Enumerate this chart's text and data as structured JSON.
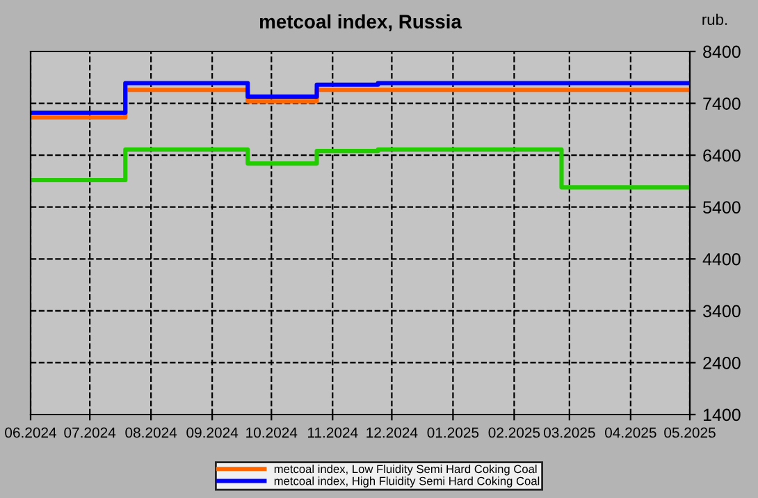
{
  "chart_data": {
    "type": "step",
    "title": "metcoal index, Russia",
    "ylabel": "rub.",
    "x": [
      "2024-06-01",
      "2024-07-19",
      "2024-09-19",
      "2024-10-24",
      "2024-11-24",
      "2025-02-25",
      "2025-05-01"
    ],
    "series": [
      {
        "name": "metcoal index, Low Fluidity Semi Hard Coking Coal",
        "color": "#ff6600",
        "values": [
          7130,
          7660,
          7440,
          7660,
          7660,
          7660,
          7660
        ]
      },
      {
        "name": "metcoal index, High Fluidity Semi Hard Coking Coal",
        "color": "#0000ff",
        "values": [
          7220,
          7790,
          7530,
          7760,
          7790,
          7790,
          7790
        ]
      },
      {
        "color": "#22cc00",
        "values": [
          5920,
          6510,
          6240,
          6480,
          6510,
          5780,
          5780
        ]
      }
    ],
    "xlim": [
      "2024-06-01",
      "2025-05-01"
    ],
    "xticks": [
      {
        "value": "2024-06-01",
        "label": "06.2024"
      },
      {
        "value": "2024-07-01",
        "label": "07.2024"
      },
      {
        "value": "2024-08-01",
        "label": "08.2024"
      },
      {
        "value": "2024-09-01",
        "label": "09.2024"
      },
      {
        "value": "2024-10-01",
        "label": "10.2024"
      },
      {
        "value": "2024-11-01",
        "label": "11.2024"
      },
      {
        "value": "2024-12-01",
        "label": "12.2024"
      },
      {
        "value": "2025-01-01",
        "label": "01.2025"
      },
      {
        "value": "2025-02-01",
        "label": "02.2025"
      },
      {
        "value": "2025-03-01",
        "label": "03.2025"
      },
      {
        "value": "2025-04-01",
        "label": "04.2025"
      },
      {
        "value": "2025-05-01",
        "label": "05.2025"
      }
    ],
    "ylim": [
      1400,
      8400
    ],
    "yticks": [
      1400,
      2400,
      3400,
      4400,
      5400,
      6400,
      7400,
      8400
    ],
    "grid": true,
    "legend": "bottom",
    "line_style": "solid",
    "marker": "none"
  }
}
